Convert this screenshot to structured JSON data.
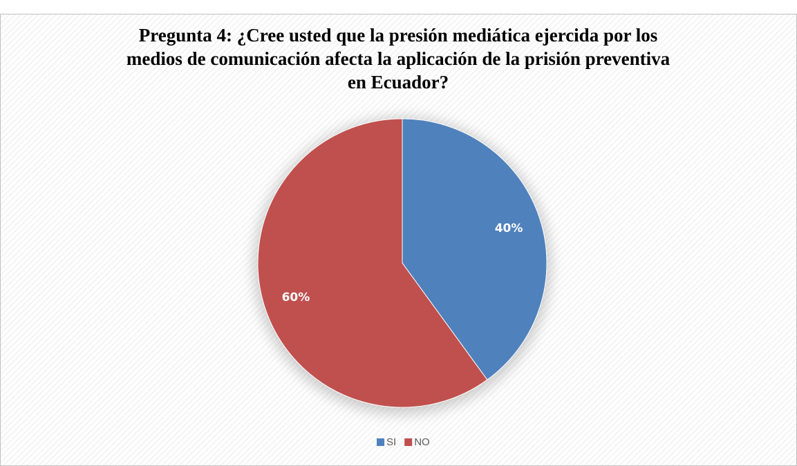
{
  "chart_data": {
    "type": "pie",
    "title": "Pregunta 4: ¿Cree usted que la presión mediática ejercida por los medios de comunicación afecta la aplicación de la prisión preventiva en Ecuador?",
    "categories": [
      "SI",
      "NO"
    ],
    "values": [
      40,
      60
    ],
    "value_labels": [
      "40%",
      "60%"
    ],
    "colors": [
      "#4f81bd",
      "#c0504d"
    ],
    "legend": "bottom"
  }
}
